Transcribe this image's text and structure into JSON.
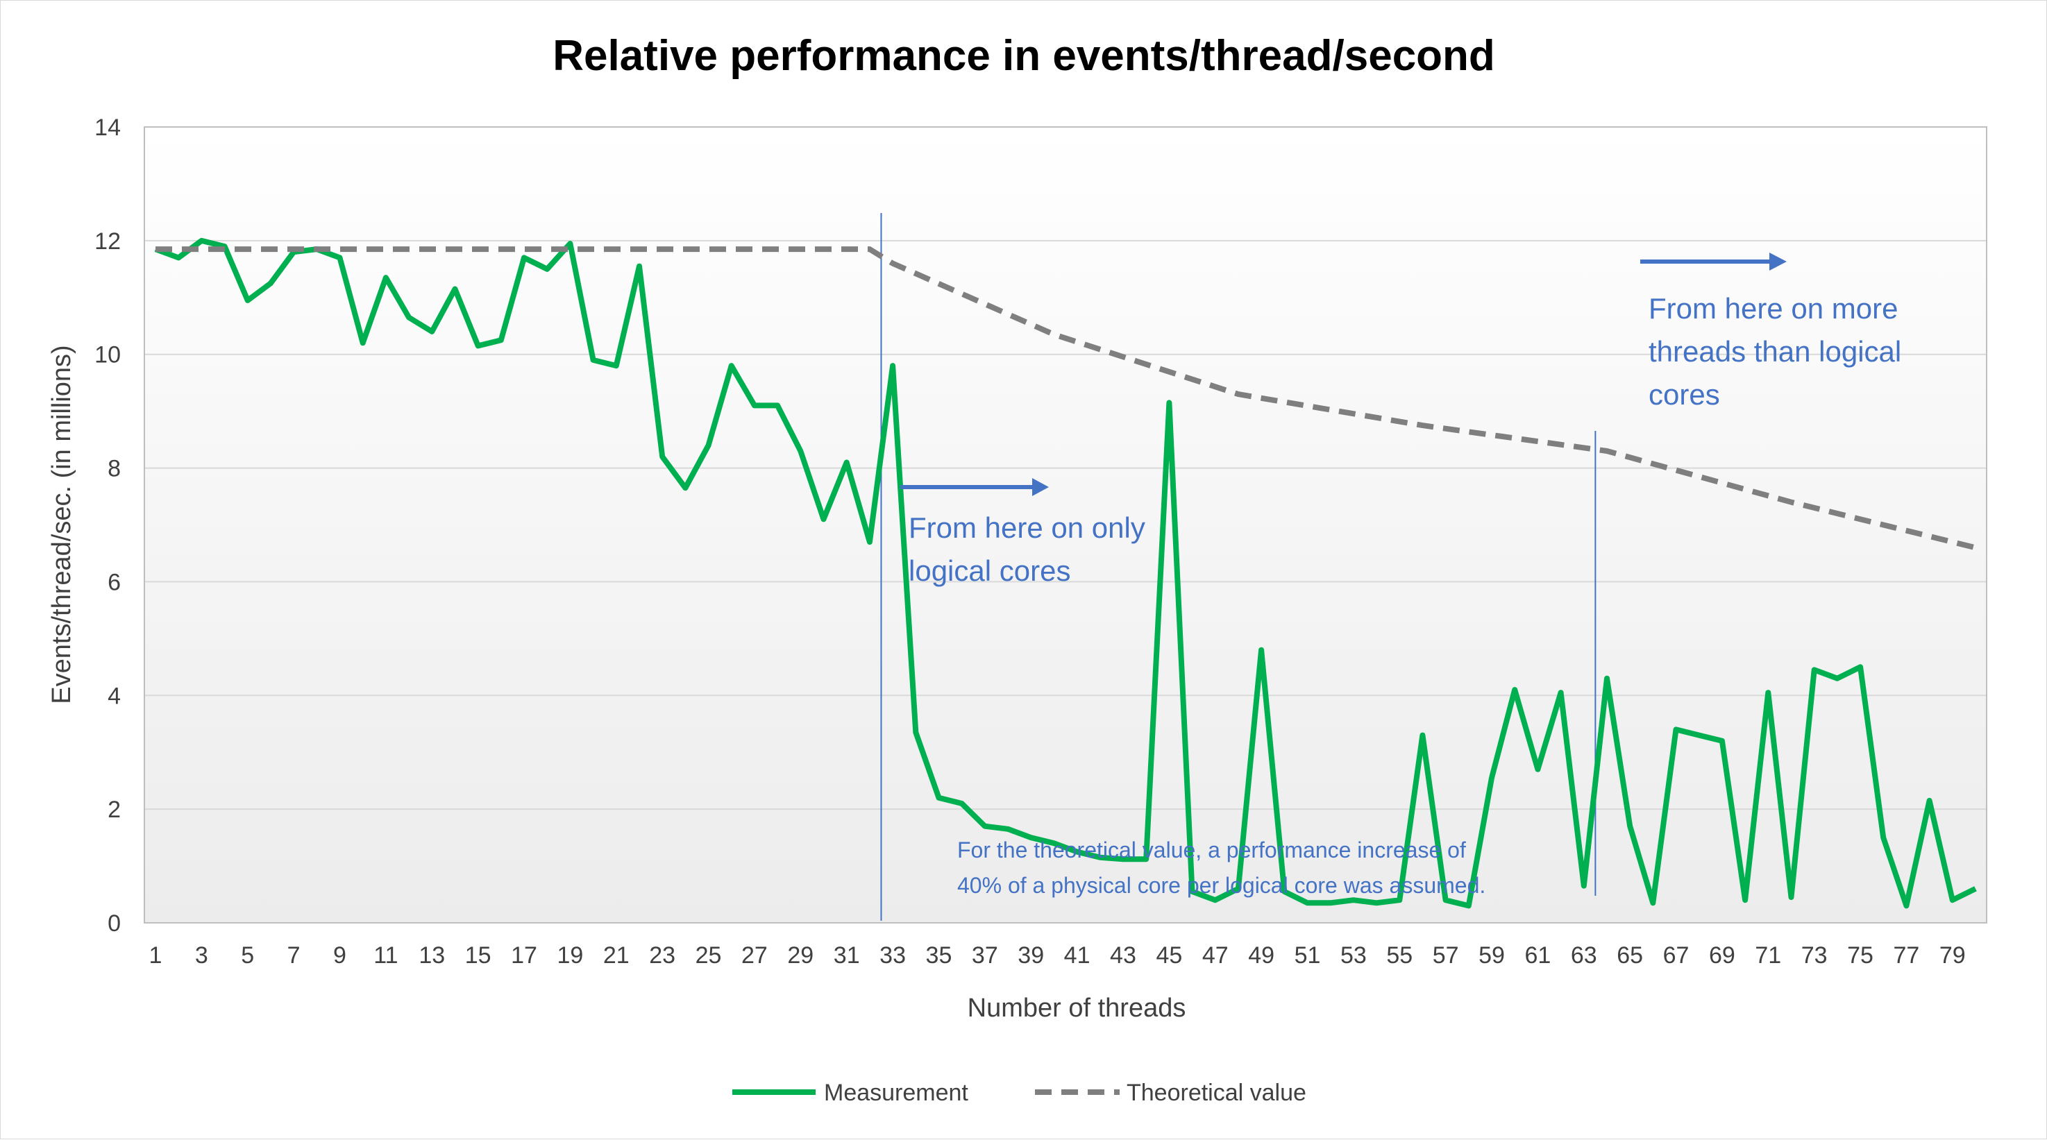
{
  "colors": {
    "measurement": "#00b050",
    "theoretical": "#7f7f7f",
    "annotation": "#4472c4",
    "grid": "#d9d9d9",
    "plot_gradient_top": "#ffffff",
    "plot_gradient_bottom": "#ececec"
  },
  "chart_data": {
    "type": "line",
    "title": "Relative performance in events/thread/second",
    "xlabel": "Number of threads",
    "ylabel": "Events/thread/sec. (in millions)",
    "xlim": [
      1,
      80
    ],
    "ylim": [
      0,
      14
    ],
    "y_ticks": [
      "0",
      "2",
      "4",
      "6",
      "8",
      "10",
      "12",
      "14"
    ],
    "x_tick_labels": [
      "1",
      "3",
      "5",
      "7",
      "9",
      "11",
      "13",
      "15",
      "17",
      "19",
      "21",
      "23",
      "25",
      "27",
      "29",
      "31",
      "33",
      "35",
      "37",
      "39",
      "41",
      "43",
      "45",
      "47",
      "49",
      "51",
      "53",
      "55",
      "57",
      "59",
      "61",
      "63",
      "65",
      "67",
      "69",
      "71",
      "73",
      "75",
      "77",
      "79"
    ],
    "grid": "horizontal",
    "legend_position": "bottom",
    "series": [
      {
        "name": "Measurement",
        "style": "solid",
        "x": [
          1,
          2,
          3,
          4,
          5,
          6,
          7,
          8,
          9,
          10,
          11,
          12,
          13,
          14,
          15,
          16,
          17,
          18,
          19,
          20,
          21,
          22,
          23,
          24,
          25,
          26,
          27,
          28,
          29,
          30,
          31,
          32,
          33,
          34,
          35,
          36,
          37,
          38,
          39,
          40,
          41,
          42,
          43,
          44,
          45,
          46,
          47,
          48,
          49,
          50,
          51,
          52,
          53,
          54,
          55,
          56,
          57,
          58,
          59,
          60,
          61,
          62,
          63,
          64,
          65,
          66,
          67,
          68,
          69,
          70,
          71,
          72,
          73,
          74,
          75,
          76,
          77,
          78,
          79,
          80
        ],
        "values": [
          11.85,
          11.7,
          12.0,
          11.9,
          10.95,
          11.25,
          11.8,
          11.85,
          11.7,
          10.2,
          11.35,
          10.65,
          10.4,
          11.15,
          10.15,
          10.25,
          11.7,
          11.5,
          11.95,
          9.9,
          9.8,
          11.55,
          8.2,
          7.65,
          8.4,
          9.8,
          9.1,
          9.1,
          8.3,
          7.1,
          8.1,
          6.7,
          9.8,
          3.35,
          2.2,
          2.1,
          1.7,
          1.65,
          1.5,
          1.4,
          1.25,
          1.15,
          1.12,
          1.12,
          9.15,
          0.55,
          0.4,
          0.6,
          4.8,
          0.55,
          0.35,
          0.35,
          0.4,
          0.35,
          0.4,
          3.3,
          0.4,
          0.3,
          2.55,
          4.1,
          2.7,
          4.05,
          0.65,
          4.3,
          1.7,
          0.35,
          3.4,
          3.3,
          3.2,
          0.4,
          4.05,
          0.45,
          4.45,
          4.3,
          4.5,
          1.5,
          0.3,
          2.15,
          0.4,
          0.6
        ]
      },
      {
        "name": "Theoretical value",
        "style": "dashed",
        "x": [
          1,
          32,
          33,
          40,
          48,
          56,
          64,
          72,
          80
        ],
        "values": [
          11.85,
          11.85,
          11.6,
          10.35,
          9.3,
          8.75,
          8.3,
          7.4,
          6.6
        ]
      }
    ],
    "vertical_markers": [
      32.5,
      63.5
    ],
    "annotations": {
      "logical_cores": [
        "From here on only",
        "logical cores"
      ],
      "more_threads": [
        "From here on more",
        "threads than logical",
        "cores"
      ],
      "theoretical_note": [
        "For the theoretical value, a performance increase of",
        "40% of a physical core per logical core was assumed."
      ]
    }
  }
}
